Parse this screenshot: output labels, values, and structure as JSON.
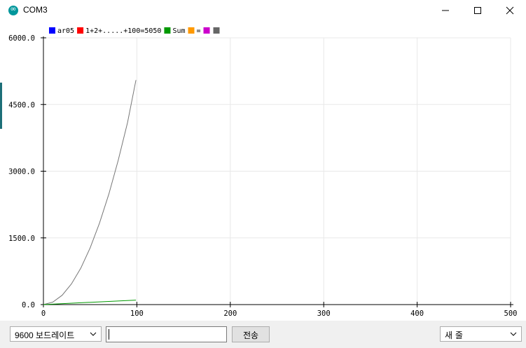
{
  "window": {
    "title": "COM3"
  },
  "icons": {
    "app": "arduino-icon",
    "minimize": "minimize-icon",
    "maximize": "maximize-icon",
    "close": "close-icon",
    "dropdown": "chevron-down-icon"
  },
  "legend": [
    {
      "label": "ar05",
      "color": "#0000ff"
    },
    {
      "label": "1+2+.....+100=5050",
      "color": "#ff0000"
    },
    {
      "label": "Sum",
      "color": "#009900"
    },
    {
      "label": "=",
      "color": "#ff9900"
    },
    {
      "label": "",
      "color": "#cc00cc"
    },
    {
      "label": "",
      "color": "#666666"
    }
  ],
  "chart_data": {
    "type": "line",
    "xlim": [
      0,
      500
    ],
    "ylim": [
      0,
      6000
    ],
    "x_ticks": [
      "0",
      "100",
      "200",
      "300",
      "400",
      "500"
    ],
    "y_ticks": [
      "0.0",
      "1500.0",
      "3000.0",
      "4500.0",
      "6000.0"
    ],
    "grid": true,
    "legend_position": "top-left",
    "series": [
      {
        "color": "#777777",
        "x": [
          0,
          10,
          20,
          30,
          40,
          50,
          60,
          70,
          80,
          90,
          99
        ],
        "y": [
          0,
          55,
          210,
          465,
          820,
          1275,
          1830,
          2485,
          3240,
          4095,
          5050
        ]
      },
      {
        "color": "#009900",
        "x": [
          0,
          99
        ],
        "y": [
          0,
          100
        ]
      }
    ]
  },
  "bottom": {
    "baud_rate": "9600 보드레이트",
    "send_input_value": "",
    "send_label": "전송",
    "line_ending": "새 줄"
  }
}
